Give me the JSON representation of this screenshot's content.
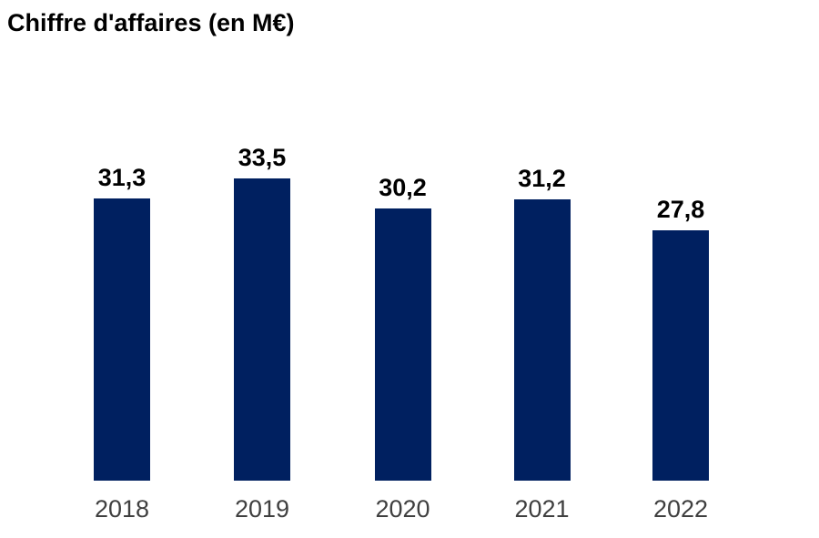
{
  "page": {
    "background": "#ffffff"
  },
  "chart_data": {
    "type": "bar",
    "title": "Chiffre d'affaires (en M€)",
    "categories": [
      "2018",
      "2019",
      "2020",
      "2021",
      "2022"
    ],
    "values": [
      31.3,
      33.5,
      30.2,
      31.2,
      27.8
    ],
    "value_labels": [
      "31,3",
      "33,5",
      "30,2",
      "31,2",
      "27,8"
    ],
    "xlabel": "",
    "ylabel": "",
    "ylim": [
      0,
      38
    ],
    "grid": false,
    "axes_visible": false,
    "legend_visible": false,
    "data_labels_visible": true,
    "bar_color": "#002060",
    "title_color": "#000000",
    "value_label_color": "#000000",
    "category_label_color": "#3f3f3f"
  }
}
